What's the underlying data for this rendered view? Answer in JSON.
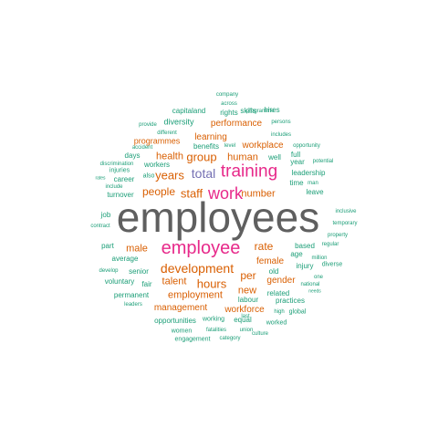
{
  "colors": {
    "gray": "#5f5f5f",
    "magenta": "#e7298a",
    "orange": "#d95f02",
    "purple": "#7570b3",
    "teal": "#1b9e77"
  },
  "words": [
    {
      "text": "employees",
      "color": "gray"
    },
    {
      "text": "employee",
      "color": "magenta"
    },
    {
      "text": "training",
      "color": "magenta"
    },
    {
      "text": "work",
      "color": "magenta"
    },
    {
      "text": "total",
      "color": "purple"
    },
    {
      "text": "development",
      "color": "orange"
    },
    {
      "text": "hours",
      "color": "orange"
    },
    {
      "text": "staff",
      "color": "orange"
    },
    {
      "text": "group",
      "color": "orange"
    },
    {
      "text": "years",
      "color": "orange"
    },
    {
      "text": "people",
      "color": "orange"
    },
    {
      "text": "number",
      "color": "orange"
    },
    {
      "text": "rate",
      "color": "orange"
    },
    {
      "text": "health",
      "color": "orange"
    },
    {
      "text": "human",
      "color": "orange"
    },
    {
      "text": "employment",
      "color": "orange"
    },
    {
      "text": "talent",
      "color": "orange"
    },
    {
      "text": "management",
      "color": "orange"
    },
    {
      "text": "new",
      "color": "orange"
    },
    {
      "text": "per",
      "color": "orange"
    },
    {
      "text": "female",
      "color": "orange"
    },
    {
      "text": "gender",
      "color": "orange"
    },
    {
      "text": "male",
      "color": "orange"
    },
    {
      "text": "workforce",
      "color": "orange"
    },
    {
      "text": "performance",
      "color": "orange"
    },
    {
      "text": "learning",
      "color": "orange"
    },
    {
      "text": "workplace",
      "color": "orange"
    },
    {
      "text": "programmes",
      "color": "orange"
    },
    {
      "text": "leadership",
      "color": "teal"
    },
    {
      "text": "diversity",
      "color": "teal"
    },
    {
      "text": "capitaland",
      "color": "teal"
    },
    {
      "text": "rights",
      "color": "teal"
    },
    {
      "text": "hires",
      "color": "teal"
    },
    {
      "text": "skills",
      "color": "teal"
    },
    {
      "text": "benefits",
      "color": "teal"
    },
    {
      "text": "well",
      "color": "teal"
    },
    {
      "text": "full",
      "color": "teal"
    },
    {
      "text": "year",
      "color": "teal"
    },
    {
      "text": "time",
      "color": "teal"
    },
    {
      "text": "leave",
      "color": "teal"
    },
    {
      "text": "days",
      "color": "teal"
    },
    {
      "text": "workers",
      "color": "teal"
    },
    {
      "text": "career",
      "color": "teal"
    },
    {
      "text": "turnover",
      "color": "teal"
    },
    {
      "text": "injuries",
      "color": "teal"
    },
    {
      "text": "also",
      "color": "teal"
    },
    {
      "text": "job",
      "color": "teal"
    },
    {
      "text": "part",
      "color": "teal"
    },
    {
      "text": "average",
      "color": "teal"
    },
    {
      "text": "senior",
      "color": "teal"
    },
    {
      "text": "voluntary",
      "color": "teal"
    },
    {
      "text": "fair",
      "color": "teal"
    },
    {
      "text": "permanent",
      "color": "teal"
    },
    {
      "text": "labour",
      "color": "teal"
    },
    {
      "text": "practices",
      "color": "teal"
    },
    {
      "text": "related",
      "color": "teal"
    },
    {
      "text": "injury",
      "color": "teal"
    },
    {
      "text": "based",
      "color": "teal"
    },
    {
      "text": "age",
      "color": "teal"
    },
    {
      "text": "old",
      "color": "teal"
    },
    {
      "text": "opportunities",
      "color": "teal"
    },
    {
      "text": "working",
      "color": "teal"
    },
    {
      "text": "equal",
      "color": "teal"
    },
    {
      "text": "worked",
      "color": "teal"
    },
    {
      "text": "women",
      "color": "teal"
    },
    {
      "text": "fatalities",
      "color": "teal"
    },
    {
      "text": "union",
      "color": "teal"
    },
    {
      "text": "engagement",
      "color": "teal"
    },
    {
      "text": "category",
      "color": "teal"
    },
    {
      "text": "culture",
      "color": "teal"
    },
    {
      "text": "high",
      "color": "teal"
    },
    {
      "text": "global",
      "color": "teal"
    },
    {
      "text": "national",
      "color": "teal"
    },
    {
      "text": "needs",
      "color": "teal"
    },
    {
      "text": "one",
      "color": "teal"
    },
    {
      "text": "diverse",
      "color": "teal"
    },
    {
      "text": "million",
      "color": "teal"
    },
    {
      "text": "regular",
      "color": "teal"
    },
    {
      "text": "property",
      "color": "teal"
    },
    {
      "text": "temporary",
      "color": "teal"
    },
    {
      "text": "inclusive",
      "color": "teal"
    },
    {
      "text": "man",
      "color": "teal"
    },
    {
      "text": "potential",
      "color": "teal"
    },
    {
      "text": "opportunity",
      "color": "teal"
    },
    {
      "text": "includes",
      "color": "teal"
    },
    {
      "text": "persons",
      "color": "teal"
    },
    {
      "text": "programme",
      "color": "teal"
    },
    {
      "text": "across",
      "color": "teal"
    },
    {
      "text": "company",
      "color": "teal"
    },
    {
      "text": "provide",
      "color": "teal"
    },
    {
      "text": "different",
      "color": "teal"
    },
    {
      "text": "discrimination",
      "color": "teal"
    },
    {
      "text": "accident",
      "color": "teal"
    },
    {
      "text": "level",
      "color": "teal"
    },
    {
      "text": "include",
      "color": "teal"
    },
    {
      "text": "rates",
      "color": "teal"
    },
    {
      "text": "contract",
      "color": "teal"
    },
    {
      "text": "develop",
      "color": "teal"
    },
    {
      "text": "leaders",
      "color": "teal"
    },
    {
      "text": "last",
      "color": "teal"
    }
  ]
}
